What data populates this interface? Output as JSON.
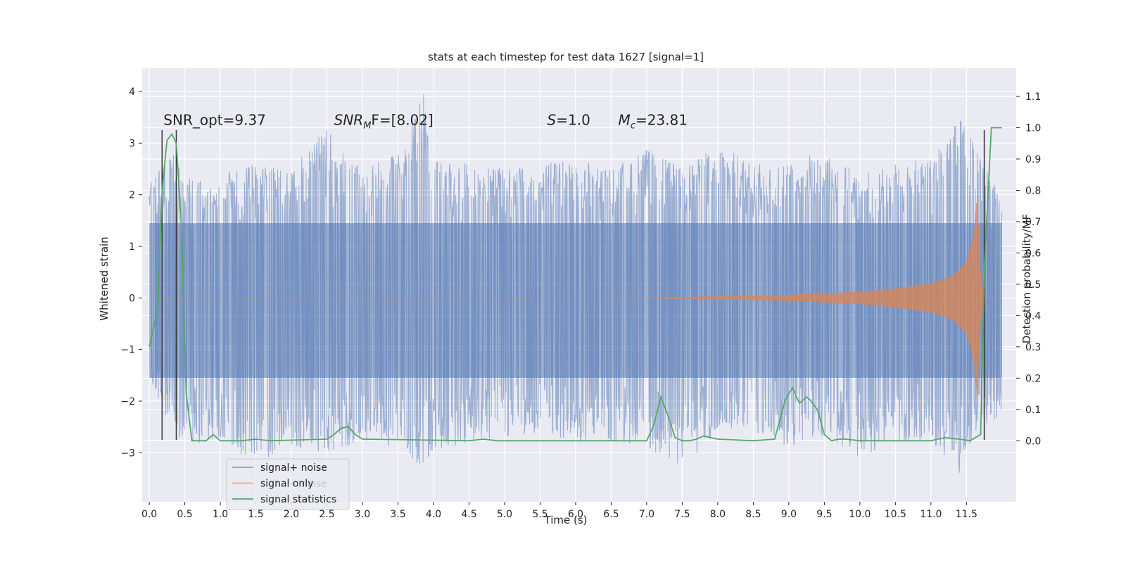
{
  "chart_data": {
    "type": "line",
    "title": "stats at each timestep for test data 1627 [signal=1]",
    "xlabel": "Time (s)",
    "ylabel": "Whitened strain",
    "y2label": "Detection probability/MF",
    "xlim": [
      -0.1,
      12.2
    ],
    "ylim": [
      -3.95,
      4.45
    ],
    "y2lim": [
      -0.195,
      1.19
    ],
    "x_ticks": [
      0.0,
      0.5,
      1.0,
      1.5,
      2.0,
      2.5,
      3.0,
      3.5,
      4.0,
      4.5,
      5.0,
      5.5,
      6.0,
      6.5,
      7.0,
      7.5,
      8.0,
      8.5,
      9.0,
      9.5,
      10.0,
      10.5,
      11.0,
      11.5
    ],
    "x_tick_labels": [
      "0.0",
      "0.5",
      "1.0",
      "1.5",
      "2.0",
      "2.5",
      "3.0",
      "3.5",
      "4.0",
      "4.5",
      "5.0",
      "5.5",
      "6.0",
      "6.5",
      "7.0",
      "7.5",
      "8.0",
      "8.5",
      "9.0",
      "9.5",
      "10.0",
      "10.5",
      "11.0",
      "11.5"
    ],
    "y_ticks": [
      -3,
      -2,
      -1,
      0,
      1,
      2,
      3,
      4
    ],
    "y_tick_labels": [
      "−3",
      "−2",
      "−1",
      "0",
      "1",
      "2",
      "3",
      "4"
    ],
    "y2_ticks": [
      0.0,
      0.1,
      0.2,
      0.3,
      0.4,
      0.5,
      0.6,
      0.7,
      0.8,
      0.9,
      1.0,
      1.1
    ],
    "y2_tick_labels": [
      "0.0",
      "0.1",
      "0.2",
      "0.3",
      "0.4",
      "0.5",
      "0.6",
      "0.7",
      "0.8",
      "0.9",
      "1.0",
      "1.1"
    ],
    "grid": true,
    "legend_position": "lower-left",
    "series": [
      {
        "name": "signal+ noise",
        "color": "#4c72b0",
        "axis": "left",
        "description_of_values": "noise band with envelope peaks",
        "x": [
          0.0,
          0.3,
          0.5,
          1.0,
          1.5,
          2.0,
          2.5,
          2.8,
          3.0,
          3.5,
          3.85,
          4.0,
          4.5,
          5.0,
          5.5,
          6.0,
          6.5,
          7.0,
          7.5,
          8.0,
          8.5,
          9.0,
          9.5,
          10.0,
          10.5,
          11.0,
          11.4,
          11.7,
          12.0
        ],
        "upper": [
          2.2,
          2.9,
          2.3,
          2.4,
          2.6,
          2.5,
          3.3,
          2.7,
          2.5,
          2.8,
          4.1,
          2.7,
          2.6,
          2.5,
          2.6,
          2.7,
          2.5,
          2.9,
          2.5,
          3.0,
          2.6,
          2.6,
          2.9,
          2.4,
          2.6,
          2.7,
          3.5,
          2.9,
          1.8
        ],
        "lower": [
          -1.5,
          -2.6,
          -2.8,
          -2.8,
          -3.2,
          -2.9,
          -3.0,
          -2.9,
          -2.8,
          -2.9,
          -3.3,
          -3.0,
          -2.8,
          -2.7,
          -2.6,
          -2.8,
          -2.8,
          -2.9,
          -3.3,
          -2.6,
          -2.7,
          -2.9,
          -2.7,
          -3.1,
          -2.8,
          -2.9,
          -3.4,
          -2.5,
          -2.3
        ]
      },
      {
        "name": "signal only",
        "color": "#dd8452",
        "axis": "left",
        "x": [
          0.0,
          7.0,
          8.0,
          9.0,
          10.0,
          10.5,
          11.0,
          11.3,
          11.5,
          11.6,
          11.65,
          11.7,
          11.75,
          12.0
        ],
        "amplitude": [
          0.0,
          0.0,
          0.03,
          0.06,
          0.12,
          0.18,
          0.28,
          0.42,
          0.7,
          1.2,
          2.0,
          0.5,
          0.0,
          0.0
        ]
      },
      {
        "name": "signal statistics",
        "color": "#55a868",
        "axis": "right",
        "x": [
          0.0,
          0.12,
          0.18,
          0.25,
          0.32,
          0.38,
          0.45,
          0.52,
          0.6,
          0.7,
          0.8,
          0.9,
          1.0,
          1.1,
          1.3,
          1.5,
          1.7,
          2.5,
          2.6,
          2.7,
          2.8,
          2.9,
          3.0,
          4.5,
          4.7,
          4.9,
          7.0,
          7.1,
          7.2,
          7.3,
          7.4,
          7.5,
          7.6,
          7.7,
          7.8,
          7.9,
          8.0,
          8.5,
          8.8,
          8.95,
          9.05,
          9.15,
          9.25,
          9.3,
          9.4,
          9.5,
          9.6,
          9.7,
          9.8,
          10.0,
          10.5,
          11.0,
          11.2,
          11.4,
          11.55,
          11.7,
          11.75,
          11.85,
          12.0
        ],
        "values": [
          0.3,
          0.42,
          0.8,
          0.96,
          0.98,
          0.95,
          0.7,
          0.15,
          0.0,
          0.0,
          0.0,
          0.02,
          0.0,
          0.0,
          0.0,
          0.005,
          0.0,
          0.005,
          0.02,
          0.04,
          0.045,
          0.02,
          0.005,
          0.0,
          0.005,
          0.0,
          0.0,
          0.05,
          0.14,
          0.08,
          0.01,
          0.0,
          0.0,
          0.005,
          0.015,
          0.01,
          0.005,
          0.0,
          0.005,
          0.13,
          0.17,
          0.12,
          0.14,
          0.13,
          0.1,
          0.02,
          0.0,
          0.005,
          0.005,
          0.0,
          0.0,
          0.0,
          0.01,
          0.005,
          0.0,
          0.02,
          0.55,
          1.0,
          1.0
        ]
      }
    ],
    "vertical_lines": [
      {
        "x": 0.18,
        "ymin": -2.75,
        "ymax": 3.25,
        "color": "#333333"
      },
      {
        "x": 0.38,
        "ymin": -2.75,
        "ymax": 3.25,
        "color": "#333333"
      },
      {
        "x": 11.75,
        "ymin": -2.75,
        "ymax": 3.25,
        "color": "#333333"
      }
    ],
    "annotations": [
      {
        "text": "SNR_opt=9.37",
        "x": 0.2,
        "y": 3.35
      },
      {
        "text": "SNR",
        "italic_sub": "M",
        "suffix": "F=[8.02]",
        "x": 2.6,
        "y": 3.35
      },
      {
        "text": "S=1.0",
        "x": 5.6,
        "y": 3.35
      },
      {
        "text": "M",
        "italic_sub": "c",
        "suffix": "=23.81",
        "x": 6.6,
        "y": 3.35
      }
    ],
    "legend_overlap_text": "signal+ noise"
  }
}
